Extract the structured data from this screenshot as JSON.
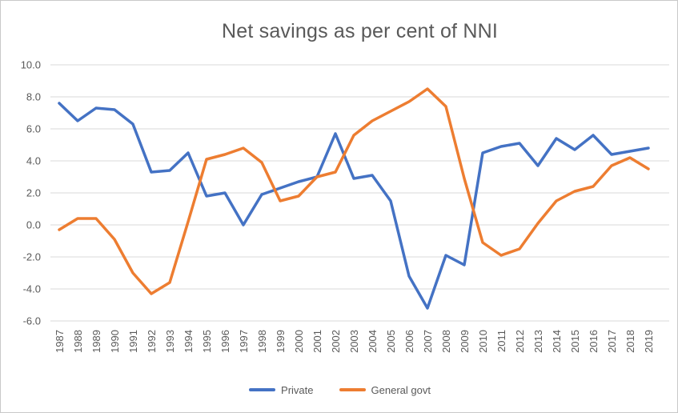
{
  "title": "Net savings as per cent of NNI",
  "legend": {
    "items": [
      {
        "label": "Private",
        "color": "#4472C4"
      },
      {
        "label": "General govt",
        "color": "#ED7D31"
      }
    ]
  },
  "colors": {
    "private_line": "#4472C4",
    "general_govt_line": "#ED7D31",
    "gridline": "#D9D9D9",
    "axis_text": "#595959",
    "title_text": "#595959",
    "background": "#FFFFFF"
  },
  "chart_data": {
    "type": "line",
    "title": "Net savings as per cent of NNI",
    "xlabel": "",
    "ylabel": "",
    "x": [
      1987,
      1988,
      1989,
      1990,
      1991,
      1992,
      1993,
      1994,
      1995,
      1996,
      1997,
      1998,
      1999,
      2000,
      2001,
      2002,
      2003,
      2004,
      2005,
      2006,
      2007,
      2008,
      2009,
      2010,
      2011,
      2012,
      2013,
      2014,
      2015,
      2016,
      2017,
      2018,
      2019
    ],
    "series": [
      {
        "name": "Private",
        "color": "#4472C4",
        "values": [
          7.6,
          6.5,
          7.3,
          7.2,
          6.3,
          3.3,
          3.4,
          4.5,
          1.8,
          2.0,
          0.0,
          1.9,
          2.3,
          2.7,
          3.0,
          5.7,
          2.9,
          3.1,
          1.5,
          -3.2,
          -5.2,
          -1.9,
          -2.5,
          4.5,
          4.9,
          5.1,
          3.7,
          5.4,
          4.7,
          5.6,
          4.4,
          4.6,
          4.8
        ]
      },
      {
        "name": "General govt",
        "color": "#ED7D31",
        "values": [
          -0.3,
          0.4,
          0.4,
          -0.9,
          -3.0,
          -4.3,
          -3.6,
          0.2,
          4.1,
          4.4,
          4.8,
          3.9,
          1.5,
          1.8,
          3.0,
          3.3,
          5.6,
          6.5,
          7.1,
          7.7,
          8.5,
          7.4,
          2.9,
          -1.1,
          -1.9,
          -1.5,
          0.1,
          1.5,
          2.1,
          2.4,
          3.7,
          4.2,
          3.5
        ]
      }
    ],
    "ylim": [
      -6.0,
      10.0
    ],
    "ytick_values": [
      10,
      8,
      6,
      4,
      2,
      0,
      -2,
      -4,
      -6
    ],
    "ytick_labels": [
      "10.0",
      "8.0",
      "6.0",
      "4.0",
      "2.0",
      "0.0",
      "-2.0",
      "-4.0",
      "-6.0"
    ],
    "grid": true,
    "legend_position": "bottom",
    "x_labels_rotated": true
  }
}
